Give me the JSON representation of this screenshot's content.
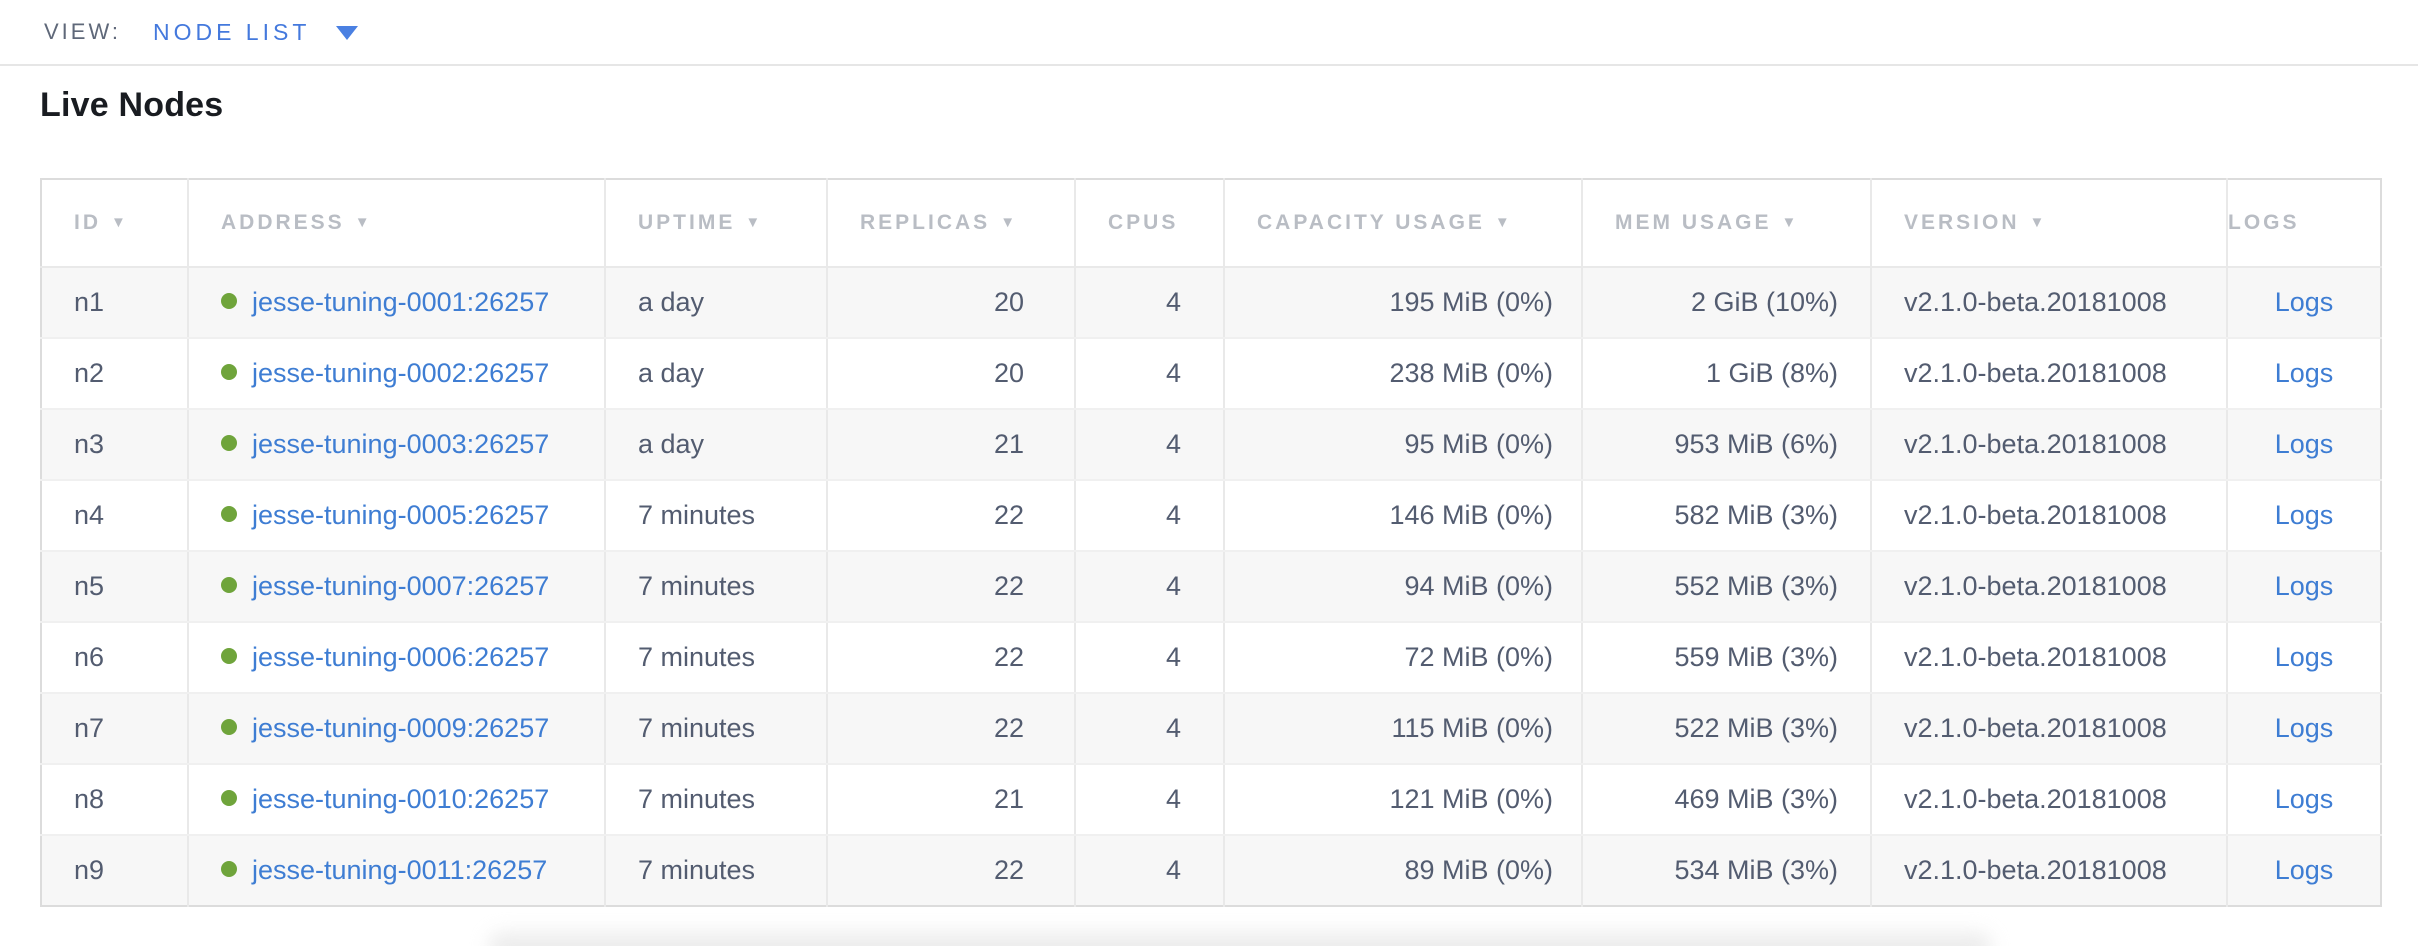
{
  "view_bar": {
    "label": "VIEW:",
    "selected": "NODE LIST"
  },
  "page": {
    "title": "Live Nodes"
  },
  "colors": {
    "accent_blue": "#3e7dd3",
    "live_dot_green": "#6fa43b",
    "header_gray": "#b9bdc4",
    "cell_text": "#535c70",
    "row_stripe": "#f7f7f7"
  },
  "table": {
    "columns": [
      {
        "key": "id",
        "label": "ID",
        "sortable": true,
        "align": "left"
      },
      {
        "key": "address",
        "label": "ADDRESS",
        "sortable": true,
        "align": "left"
      },
      {
        "key": "uptime",
        "label": "UPTIME",
        "sortable": true,
        "align": "left"
      },
      {
        "key": "replicas",
        "label": "REPLICAS",
        "sortable": true,
        "align": "right"
      },
      {
        "key": "cpus",
        "label": "CPUS",
        "sortable": false,
        "align": "right"
      },
      {
        "key": "capacity",
        "label": "CAPACITY USAGE",
        "sortable": true,
        "align": "right"
      },
      {
        "key": "mem",
        "label": "MEM USAGE",
        "sortable": true,
        "align": "right"
      },
      {
        "key": "version",
        "label": "VERSION",
        "sortable": true,
        "align": "left"
      },
      {
        "key": "logs",
        "label": "LOGS",
        "sortable": false,
        "align": "center"
      }
    ],
    "rows": [
      {
        "id": "n1",
        "status": "live",
        "address": "jesse-tuning-0001:26257",
        "uptime": "a day",
        "replicas": "20",
        "cpus": "4",
        "capacity": "195 MiB (0%)",
        "mem": "2 GiB (10%)",
        "version": "v2.1.0-beta.20181008",
        "logs": "Logs"
      },
      {
        "id": "n2",
        "status": "live",
        "address": "jesse-tuning-0002:26257",
        "uptime": "a day",
        "replicas": "20",
        "cpus": "4",
        "capacity": "238 MiB (0%)",
        "mem": "1 GiB (8%)",
        "version": "v2.1.0-beta.20181008",
        "logs": "Logs"
      },
      {
        "id": "n3",
        "status": "live",
        "address": "jesse-tuning-0003:26257",
        "uptime": "a day",
        "replicas": "21",
        "cpus": "4",
        "capacity": "95 MiB (0%)",
        "mem": "953 MiB (6%)",
        "version": "v2.1.0-beta.20181008",
        "logs": "Logs"
      },
      {
        "id": "n4",
        "status": "live",
        "address": "jesse-tuning-0005:26257",
        "uptime": "7 minutes",
        "replicas": "22",
        "cpus": "4",
        "capacity": "146 MiB (0%)",
        "mem": "582 MiB (3%)",
        "version": "v2.1.0-beta.20181008",
        "logs": "Logs"
      },
      {
        "id": "n5",
        "status": "live",
        "address": "jesse-tuning-0007:26257",
        "uptime": "7 minutes",
        "replicas": "22",
        "cpus": "4",
        "capacity": "94 MiB (0%)",
        "mem": "552 MiB (3%)",
        "version": "v2.1.0-beta.20181008",
        "logs": "Logs"
      },
      {
        "id": "n6",
        "status": "live",
        "address": "jesse-tuning-0006:26257",
        "uptime": "7 minutes",
        "replicas": "22",
        "cpus": "4",
        "capacity": "72 MiB (0%)",
        "mem": "559 MiB (3%)",
        "version": "v2.1.0-beta.20181008",
        "logs": "Logs"
      },
      {
        "id": "n7",
        "status": "live",
        "address": "jesse-tuning-0009:26257",
        "uptime": "7 minutes",
        "replicas": "22",
        "cpus": "4",
        "capacity": "115 MiB (0%)",
        "mem": "522 MiB (3%)",
        "version": "v2.1.0-beta.20181008",
        "logs": "Logs"
      },
      {
        "id": "n8",
        "status": "live",
        "address": "jesse-tuning-0010:26257",
        "uptime": "7 minutes",
        "replicas": "21",
        "cpus": "4",
        "capacity": "121 MiB (0%)",
        "mem": "469 MiB (3%)",
        "version": "v2.1.0-beta.20181008",
        "logs": "Logs"
      },
      {
        "id": "n9",
        "status": "live",
        "address": "jesse-tuning-0011:26257",
        "uptime": "7 minutes",
        "replicas": "22",
        "cpus": "4",
        "capacity": "89 MiB (0%)",
        "mem": "534 MiB (3%)",
        "version": "v2.1.0-beta.20181008",
        "logs": "Logs"
      }
    ]
  }
}
